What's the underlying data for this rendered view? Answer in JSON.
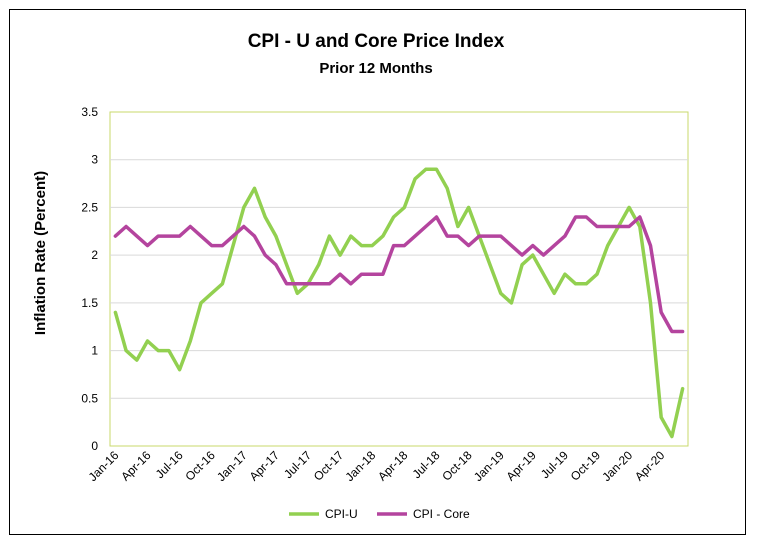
{
  "chart_data": {
    "type": "line",
    "title": "CPI - U and Core Price Index",
    "subtitle": "Prior 12 Months",
    "xlabel": "",
    "ylabel": "Inflation Rate (Percent)",
    "ylim": [
      0,
      3.5
    ],
    "yticks": [
      "0",
      "0.5",
      "1",
      "1.5",
      "2",
      "2.5",
      "3",
      "3.5"
    ],
    "grid": true,
    "legend_position": "bottom",
    "x": [
      "Jan-16",
      "Feb-16",
      "Mar-16",
      "Apr-16",
      "May-16",
      "Jun-16",
      "Jul-16",
      "Aug-16",
      "Sep-16",
      "Oct-16",
      "Nov-16",
      "Dec-16",
      "Jan-17",
      "Feb-17",
      "Mar-17",
      "Apr-17",
      "May-17",
      "Jun-17",
      "Jul-17",
      "Aug-17",
      "Sep-17",
      "Oct-17",
      "Nov-17",
      "Dec-17",
      "Jan-18",
      "Feb-18",
      "Mar-18",
      "Apr-18",
      "May-18",
      "Jun-18",
      "Jul-18",
      "Aug-18",
      "Sep-18",
      "Oct-18",
      "Nov-18",
      "Dec-18",
      "Jan-19",
      "Feb-19",
      "Mar-19",
      "Apr-19",
      "May-19",
      "Jun-19",
      "Jul-19",
      "Aug-19",
      "Sep-19",
      "Oct-19",
      "Nov-19",
      "Dec-19",
      "Jan-20",
      "Feb-20",
      "Mar-20",
      "Apr-20",
      "May-20",
      "Jun-20"
    ],
    "xtick_labels": [
      "Jan-16",
      "Apr-16",
      "Jul-16",
      "Oct-16",
      "Jan-17",
      "Apr-17",
      "Jul-17",
      "Oct-17",
      "Jan-18",
      "Apr-18",
      "Jul-18",
      "Oct-18",
      "Jan-19",
      "Apr-19",
      "Jul-19",
      "Oct-19",
      "Jan-20",
      "Apr-20"
    ],
    "series": [
      {
        "name": "CPI-U",
        "color": "#92D050",
        "values": [
          1.4,
          1.0,
          0.9,
          1.1,
          1.0,
          1.0,
          0.8,
          1.1,
          1.5,
          1.6,
          1.7,
          2.1,
          2.5,
          2.7,
          2.4,
          2.2,
          1.9,
          1.6,
          1.7,
          1.9,
          2.2,
          2.0,
          2.2,
          2.1,
          2.1,
          2.2,
          2.4,
          2.5,
          2.8,
          2.9,
          2.9,
          2.7,
          2.3,
          2.5,
          2.2,
          1.9,
          1.6,
          1.5,
          1.9,
          2.0,
          1.8,
          1.6,
          1.8,
          1.7,
          1.7,
          1.8,
          2.1,
          2.3,
          2.5,
          2.3,
          1.5,
          0.3,
          0.1,
          0.6
        ]
      },
      {
        "name": "CPI - Core",
        "color": "#B4449E",
        "values": [
          2.2,
          2.3,
          2.2,
          2.1,
          2.2,
          2.2,
          2.2,
          2.3,
          2.2,
          2.1,
          2.1,
          2.2,
          2.3,
          2.2,
          2.0,
          1.9,
          1.7,
          1.7,
          1.7,
          1.7,
          1.7,
          1.8,
          1.7,
          1.8,
          1.8,
          1.8,
          2.1,
          2.1,
          2.2,
          2.3,
          2.4,
          2.2,
          2.2,
          2.1,
          2.2,
          2.2,
          2.2,
          2.1,
          2.0,
          2.1,
          2.0,
          2.1,
          2.2,
          2.4,
          2.4,
          2.3,
          2.3,
          2.3,
          2.3,
          2.4,
          2.1,
          1.4,
          1.2,
          1.2
        ]
      }
    ]
  }
}
